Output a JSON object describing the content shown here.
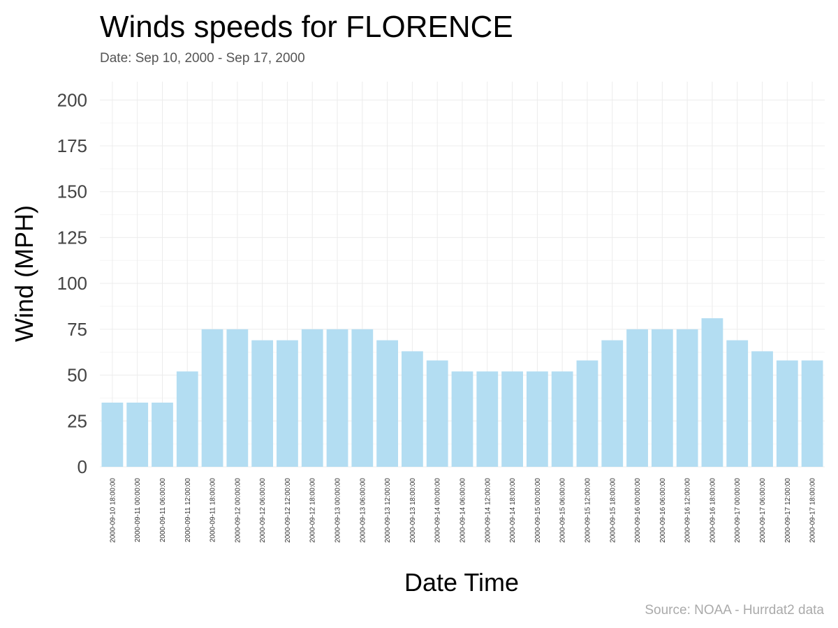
{
  "chart_data": {
    "type": "bar",
    "title": "Winds speeds for FLORENCE",
    "subtitle": "Date:  Sep 10, 2000 - Sep 17, 2000",
    "xlabel": "Date Time",
    "ylabel": "Wind (MPH)",
    "caption": "Source: NOAA - Hurrdat2 data",
    "ylim": [
      0,
      210
    ],
    "yticks": [
      0,
      25,
      50,
      75,
      100,
      125,
      150,
      175,
      200
    ],
    "bar_color": "#b3ddf2",
    "grid": true,
    "categories": [
      "2000-09-10 18:00:00",
      "2000-09-11 00:00:00",
      "2000-09-11 06:00:00",
      "2000-09-11 12:00:00",
      "2000-09-11 18:00:00",
      "2000-09-12 00:00:00",
      "2000-09-12 06:00:00",
      "2000-09-12 12:00:00",
      "2000-09-12 18:00:00",
      "2000-09-13 00:00:00",
      "2000-09-13 06:00:00",
      "2000-09-13 12:00:00",
      "2000-09-13 18:00:00",
      "2000-09-14 00:00:00",
      "2000-09-14 06:00:00",
      "2000-09-14 12:00:00",
      "2000-09-14 18:00:00",
      "2000-09-15 00:00:00",
      "2000-09-15 06:00:00",
      "2000-09-15 12:00:00",
      "2000-09-15 18:00:00",
      "2000-09-16 00:00:00",
      "2000-09-16 06:00:00",
      "2000-09-16 12:00:00",
      "2000-09-16 18:00:00",
      "2000-09-17 00:00:00",
      "2000-09-17 06:00:00",
      "2000-09-17 12:00:00",
      "2000-09-17 18:00:00"
    ],
    "values": [
      35,
      35,
      35,
      52,
      75,
      75,
      69,
      69,
      75,
      75,
      75,
      69,
      63,
      58,
      52,
      52,
      52,
      52,
      52,
      58,
      69,
      75,
      75,
      75,
      81,
      69,
      63,
      58,
      58
    ]
  }
}
